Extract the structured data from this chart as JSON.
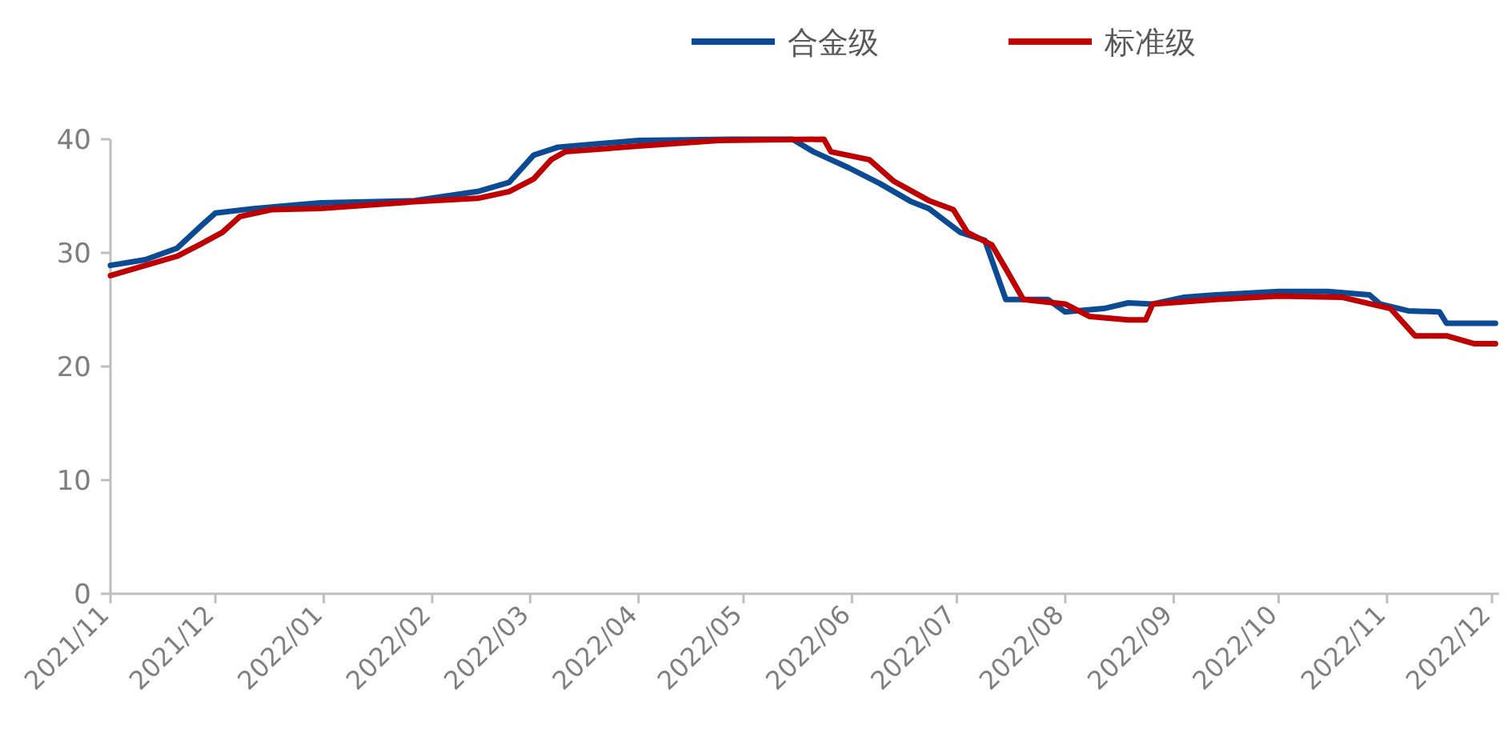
{
  "chart_data": {
    "type": "line",
    "legend": "top right",
    "xlim": [
      "2021-11-01",
      "2022-12-03"
    ],
    "ylim": [
      0,
      40
    ],
    "yticks": [
      0,
      10,
      20,
      30,
      40
    ],
    "xticks": [
      {
        "value": "2021-11-01",
        "label": "2021/11"
      },
      {
        "value": "2021-12-01",
        "label": "2021/12"
      },
      {
        "value": "2022-01-01",
        "label": "2022/01"
      },
      {
        "value": "2022-02-01",
        "label": "2022/02"
      },
      {
        "value": "2022-03-01",
        "label": "2022/03"
      },
      {
        "value": "2022-04-01",
        "label": "2022/04"
      },
      {
        "value": "2022-05-01",
        "label": "2022/05"
      },
      {
        "value": "2022-06-01",
        "label": "2022/06"
      },
      {
        "value": "2022-07-01",
        "label": "2022/07"
      },
      {
        "value": "2022-08-01",
        "label": "2022/08"
      },
      {
        "value": "2022-09-01",
        "label": "2022/09"
      },
      {
        "value": "2022-10-01",
        "label": "2022/10"
      },
      {
        "value": "2022-11-01",
        "label": "2022/11"
      },
      {
        "value": "2022-12-01",
        "label": "2022/12"
      }
    ],
    "series": [
      {
        "name": "合金级",
        "color": "#0d4a94",
        "x": [
          "2021-11-01",
          "2021-11-11",
          "2021-11-20",
          "2021-11-27",
          "2021-12-01",
          "2021-12-12",
          "2021-12-31",
          "2022-01-27",
          "2022-02-14",
          "2022-02-23",
          "2022-03-02",
          "2022-03-09",
          "2022-04-01",
          "2022-04-28",
          "2022-05-15",
          "2022-05-21",
          "2022-05-31",
          "2022-06-09",
          "2022-06-18",
          "2022-06-23",
          "2022-07-02",
          "2022-07-09",
          "2022-07-15",
          "2022-07-27",
          "2022-08-01",
          "2022-08-12",
          "2022-08-19",
          "2022-08-26",
          "2022-09-04",
          "2022-09-13",
          "2022-10-01",
          "2022-10-15",
          "2022-10-27",
          "2022-10-30",
          "2022-11-07",
          "2022-11-16",
          "2022-11-18",
          "2022-12-02"
        ],
        "values": [
          28.9,
          29.4,
          30.4,
          32.4,
          33.5,
          33.9,
          34.4,
          34.6,
          35.4,
          36.2,
          38.6,
          39.3,
          39.9,
          40,
          40,
          38.9,
          37.5,
          36.1,
          34.5,
          33.9,
          31.8,
          31.1,
          25.9,
          25.9,
          24.8,
          25.1,
          25.6,
          25.5,
          26.1,
          26.3,
          26.6,
          26.6,
          26.3,
          25.5,
          24.9,
          24.8,
          23.8,
          23.8
        ]
      },
      {
        "name": "标准级",
        "color": "#c00000",
        "x": [
          "2021-11-01",
          "2021-11-11",
          "2021-11-20",
          "2021-11-27",
          "2021-12-03",
          "2021-12-08",
          "2021-12-17",
          "2021-12-31",
          "2022-01-27",
          "2022-02-14",
          "2022-02-23",
          "2022-03-02",
          "2022-03-07",
          "2022-03-11",
          "2022-04-01",
          "2022-04-24",
          "2022-05-24",
          "2022-05-26",
          "2022-06-06",
          "2022-06-13",
          "2022-06-23",
          "2022-06-30",
          "2022-07-04",
          "2022-07-11",
          "2022-07-15",
          "2022-07-20",
          "2022-08-01",
          "2022-08-08",
          "2022-08-19",
          "2022-08-24",
          "2022-08-26",
          "2022-09-13",
          "2022-10-01",
          "2022-10-19",
          "2022-11-02",
          "2022-11-09",
          "2022-11-18",
          "2022-11-26",
          "2022-12-02"
        ],
        "values": [
          28.0,
          28.9,
          29.7,
          30.8,
          31.8,
          33.2,
          33.8,
          33.9,
          34.5,
          34.8,
          35.4,
          36.5,
          38.2,
          38.9,
          39.4,
          39.9,
          40,
          38.9,
          38.2,
          36.3,
          34.6,
          33.8,
          31.8,
          30.7,
          28.6,
          25.9,
          25.5,
          24.4,
          24.1,
          24.1,
          25.5,
          25.9,
          26.2,
          26.1,
          25.1,
          22.7,
          22.7,
          22.0,
          22.0
        ]
      }
    ]
  }
}
